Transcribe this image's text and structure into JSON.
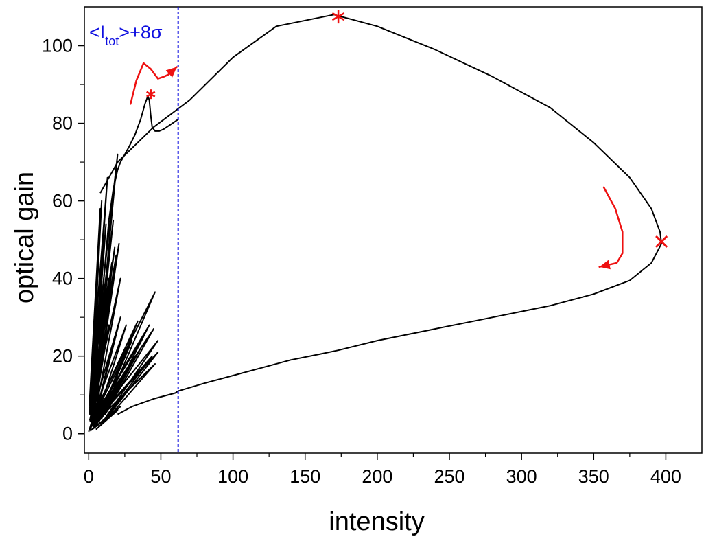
{
  "chart_data": {
    "type": "line",
    "title": "",
    "xlabel": "intensity",
    "ylabel": "optical gain",
    "xlim": [
      -3,
      425
    ],
    "ylim": [
      -5,
      110
    ],
    "x_ticks": [
      0,
      50,
      100,
      150,
      200,
      250,
      300,
      350,
      400
    ],
    "x_tick_labels": [
      "0",
      "50",
      "100",
      "150",
      "200",
      "250",
      "300",
      "350",
      "400"
    ],
    "y_ticks": [
      0,
      20,
      40,
      60,
      80,
      100
    ],
    "y_tick_labels": [
      "0",
      "20",
      "40",
      "60",
      "80",
      "100"
    ],
    "grid": false,
    "threshold": {
      "x": 62,
      "label_main": "<I",
      "label_sub": "tot",
      "label_rest": ">+8σ",
      "color": "#1010e0"
    },
    "series": [
      {
        "name": "trajectory-loop",
        "color": "#000000",
        "x": [
          20,
          30,
          45,
          60,
          62,
          80,
          100,
          120,
          140,
          160,
          173,
          200,
          240,
          280,
          320,
          350,
          375,
          390,
          397,
          396,
          390,
          375,
          350,
          320,
          280,
          240,
          200,
          170,
          130,
          100,
          70,
          45,
          20,
          8
        ],
        "y": [
          5,
          7,
          9,
          10.5,
          11,
          13,
          15,
          17,
          19,
          20.5,
          21.5,
          24,
          27,
          30,
          33,
          36,
          39.5,
          44,
          49,
          52,
          58,
          66,
          75,
          84,
          92,
          99,
          105,
          108,
          105,
          97,
          86,
          79,
          70,
          62
        ]
      },
      {
        "name": "trajectory-initial",
        "color": "#000000",
        "x": [
          0,
          2,
          4,
          7,
          10,
          14,
          17,
          20,
          22,
          25,
          28,
          32,
          36,
          39,
          41,
          42,
          43,
          44,
          46,
          49,
          52,
          56,
          60,
          62
        ],
        "y": [
          0.5,
          3,
          8,
          20,
          38,
          55,
          63,
          68,
          70,
          72,
          74,
          77,
          81,
          85,
          87,
          86,
          82,
          79,
          78,
          78,
          78.5,
          79.5,
          80.5,
          81
        ]
      }
    ],
    "burst_fan": {
      "color": "#000000",
      "tips": [
        [
          8,
          58
        ],
        [
          9,
          60
        ],
        [
          10,
          46
        ],
        [
          11,
          42
        ],
        [
          12,
          54
        ],
        [
          13,
          66
        ],
        [
          14,
          40
        ],
        [
          15,
          50
        ],
        [
          16,
          44
        ],
        [
          17,
          55
        ],
        [
          18,
          48
        ],
        [
          19,
          46
        ],
        [
          20,
          72
        ],
        [
          21,
          49
        ],
        [
          22,
          40
        ],
        [
          14,
          28
        ],
        [
          18,
          25
        ],
        [
          22,
          30
        ],
        [
          26,
          28
        ],
        [
          30,
          24
        ],
        [
          34,
          29
        ],
        [
          38,
          25
        ],
        [
          42,
          28
        ],
        [
          46,
          36.5
        ],
        [
          45,
          27
        ],
        [
          48,
          24
        ],
        [
          44,
          20
        ],
        [
          40,
          18
        ],
        [
          36,
          22
        ],
        [
          32,
          20
        ],
        [
          28,
          17
        ],
        [
          24,
          15
        ],
        [
          20,
          12
        ],
        [
          16,
          10
        ],
        [
          12,
          9
        ],
        [
          48,
          21
        ],
        [
          46,
          18
        ],
        [
          20,
          6
        ],
        [
          22,
          7
        ]
      ]
    },
    "markers": [
      {
        "x": 43,
        "y": 87.5,
        "label": "*",
        "color": "#ee1111"
      },
      {
        "x": 173,
        "y": 107.5,
        "label": "*",
        "color": "#ee1111"
      },
      {
        "x": 397,
        "y": 49.5,
        "label": "x",
        "color": "#ee1111"
      }
    ],
    "annotations": [
      {
        "type": "arrow",
        "color": "#ee1111",
        "direction": "clockwise",
        "points": [
          [
            29,
            85
          ],
          [
            33,
            91
          ],
          [
            38,
            95.5
          ],
          [
            43,
            94
          ],
          [
            48,
            91.5
          ],
          [
            52,
            92
          ],
          [
            55,
            92.5
          ],
          [
            61,
            94.5
          ]
        ]
      },
      {
        "type": "arrow",
        "color": "#ee1111",
        "direction": "clockwise",
        "points": [
          [
            357,
            63.5
          ],
          [
            365,
            58
          ],
          [
            370,
            52
          ],
          [
            370,
            46.5
          ],
          [
            366,
            44
          ],
          [
            354,
            43
          ]
        ]
      }
    ]
  }
}
